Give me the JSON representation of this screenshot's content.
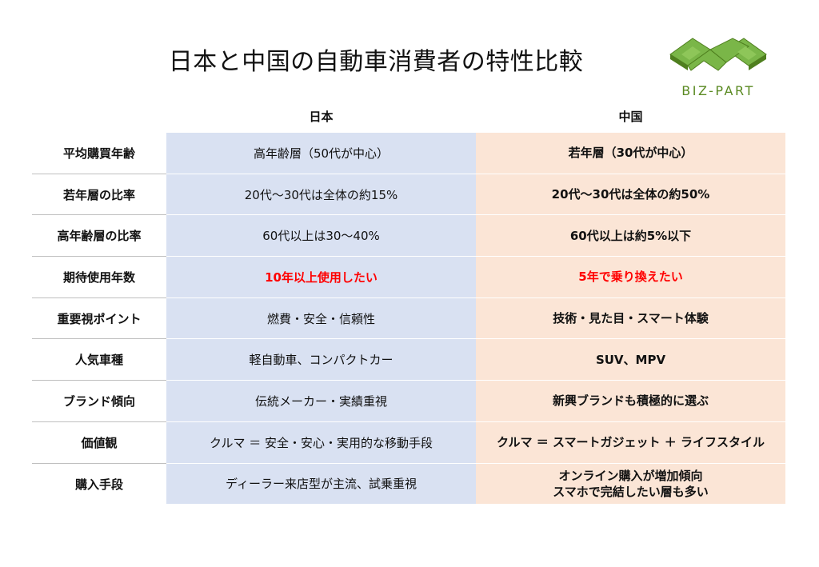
{
  "title": "日本と中国の自動車消費者の特性比較",
  "logo": {
    "text": "BIZ-PART",
    "color": "#5a8a22"
  },
  "columns": {
    "japan": "日本",
    "china": "中国"
  },
  "rows": [
    {
      "label": "平均購買年齢",
      "japan": "高年齢層（50代が中心）",
      "china": "若年層（30代が中心）"
    },
    {
      "label": "若年層の比率",
      "japan": "20代～30代は全体の約15%",
      "china": "20代～30代は全体の約50%"
    },
    {
      "label": "高年齢層の比率",
      "japan": "60代以上は30～40%",
      "china": "60代以上は約5%以下"
    },
    {
      "label": "期待使用年数",
      "japan": "10年以上使用したい",
      "china": "5年で乗り換えたい"
    },
    {
      "label": "重要視ポイント",
      "japan": "燃費・安全・信頼性",
      "china": "技術・見た目・スマート体験"
    },
    {
      "label": "人気車種",
      "japan": "軽自動車、コンパクトカー",
      "china": "SUV、MPV"
    },
    {
      "label": "ブランド傾向",
      "japan": "伝統メーカー・実績重視",
      "china": "新興ブランドも積極的に選ぶ"
    },
    {
      "label": "価値観",
      "japan": "クルマ ＝ 安全・安心・実用的な移動手段",
      "china": "クルマ ＝ スマートガジェット ＋ ライフスタイル"
    },
    {
      "label": "購入手段",
      "japan": "ディーラー来店型が主流、試乗重視",
      "china_line1": "オンライン購入が増加傾向",
      "china_line2": "スマホで完結したい層も多い"
    }
  ],
  "colors": {
    "japan_bg": "#d9e1f2",
    "china_bg": "#fbe5d6",
    "highlight": "#ff0000"
  }
}
